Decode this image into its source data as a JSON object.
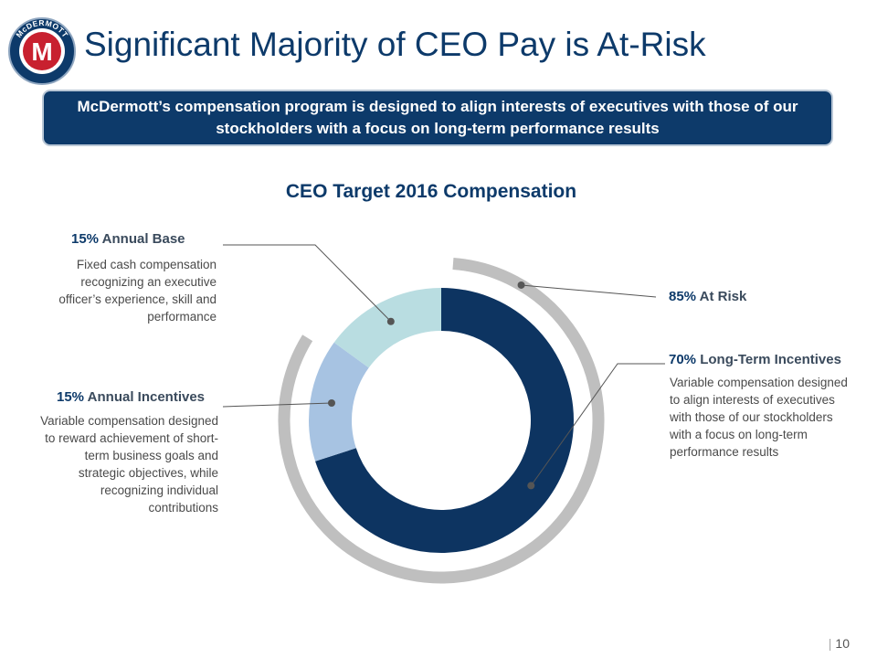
{
  "header": {
    "title": "Significant Majority of CEO Pay is At-Risk",
    "logo_text": "McDERMOTT"
  },
  "banner": {
    "text": "McDermott’s compensation program is designed to align interests of executives with those of our stockholders with a focus on long-term performance results"
  },
  "chart_data": {
    "type": "pie",
    "donut": true,
    "title": "CEO Target 2016 Compensation",
    "categories": [
      "Long-Term Incentives",
      "Annual Incentives",
      "Annual Base"
    ],
    "values": [
      70,
      15,
      15
    ],
    "colors": [
      "#0d3461",
      "#a7c3e2",
      "#b9dde1"
    ],
    "outer_ring": {
      "label": "At Risk",
      "value": 85,
      "color": "#bfbfbf"
    }
  },
  "annotations": {
    "annual_base": {
      "pct": "15%",
      "label": "Annual Base",
      "desc": "Fixed cash compensation recognizing an executive officer’s experience, skill and performance"
    },
    "annual_incentives": {
      "pct": "15%",
      "label": "Annual Incentives",
      "desc": "Variable compensation designed to reward achievement of short-term business goals and strategic objectives, while recognizing individual contributions"
    },
    "at_risk": {
      "pct": "85%",
      "label": "At Risk"
    },
    "long_term": {
      "pct": "70%",
      "label": "Long-Term Incentives",
      "desc": "Variable compensation designed to align interests of executives with those of our stockholders with a focus on long-term performance results"
    }
  },
  "footer": {
    "page_number": "10"
  }
}
